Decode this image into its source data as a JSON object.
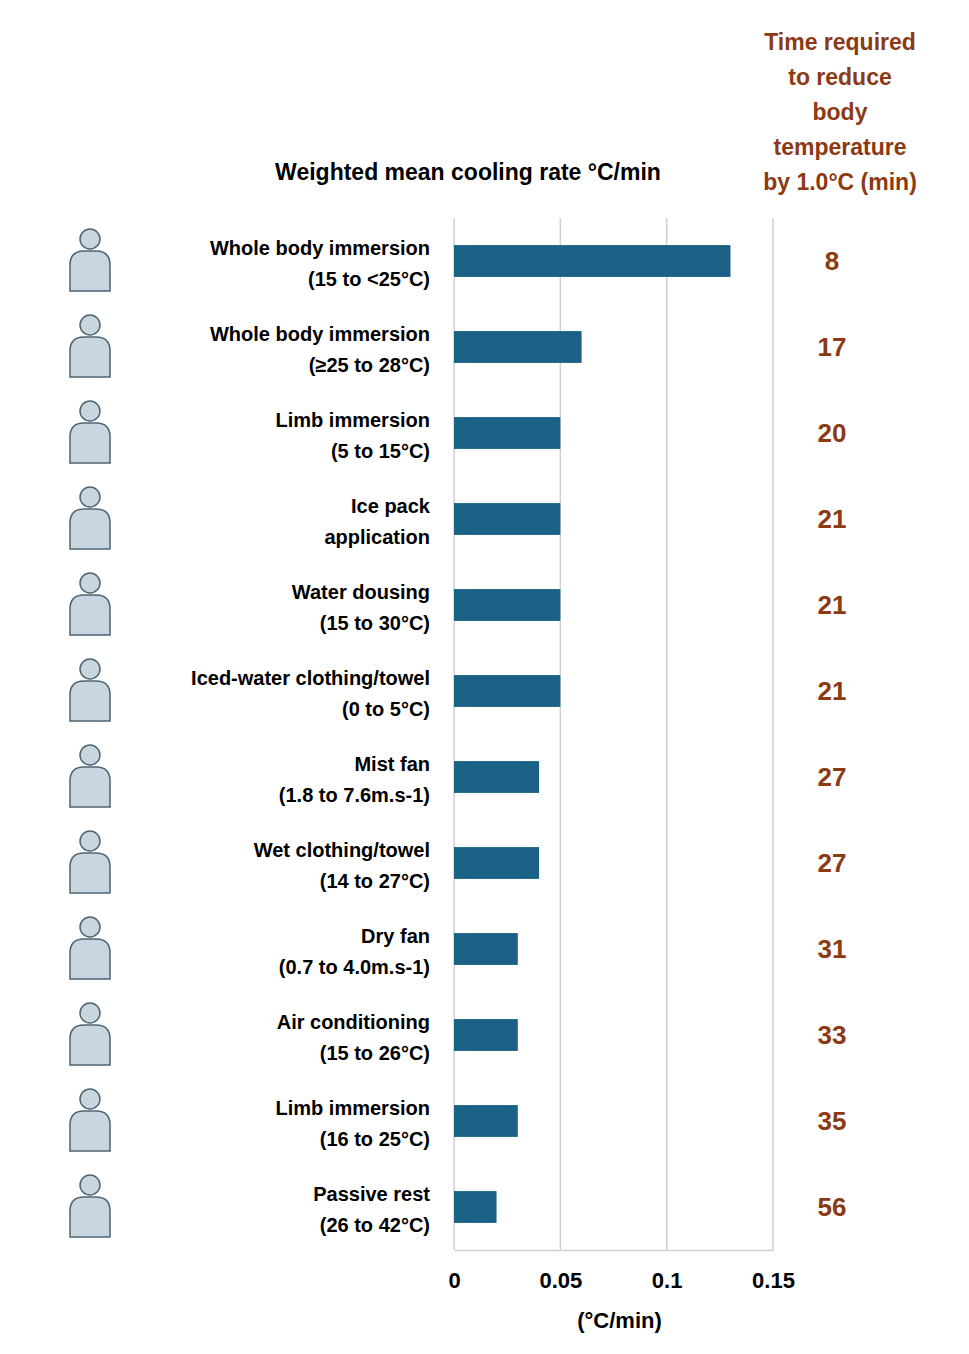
{
  "chart_data": {
    "type": "bar",
    "orientation": "horizontal",
    "title": "Weighted mean cooling rate °C/min",
    "x_label": "(°C/min)",
    "categories": [
      "Whole body immersion\n(15 to <25°C)",
      "Whole body immersion\n(≥25 to 28°C)",
      "Limb immersion\n(5 to 15°C)",
      "Ice pack\napplication",
      "Water dousing\n(15 to 30°C)",
      "Iced-water clothing/towel\n(0 to 5°C)",
      "Mist fan\n(1.8 to 7.6m.s-1)",
      "Wet clothing/towel\n(14 to 27°C)",
      "Dry fan\n(0.7 to 4.0m.s-1)",
      "Air conditioning\n(15 to 26°C)",
      "Limb immersion\n(16 to 25°C)",
      "Passive rest\n(26 to 42°C)"
    ],
    "values": [
      0.13,
      0.06,
      0.05,
      0.05,
      0.05,
      0.05,
      0.04,
      0.04,
      0.03,
      0.03,
      0.03,
      0.02
    ],
    "color": "#1b6185",
    "xlim": [
      0,
      0.15
    ],
    "xticks": [
      0,
      0.05,
      0.1,
      0.15
    ],
    "grid": true,
    "time_column": {
      "title": "Time required\nto reduce\nbody\ntemperature\nby 1.0°C (min)",
      "values": [
        8,
        17,
        20,
        21,
        21,
        21,
        27,
        27,
        31,
        33,
        35,
        56
      ]
    }
  }
}
